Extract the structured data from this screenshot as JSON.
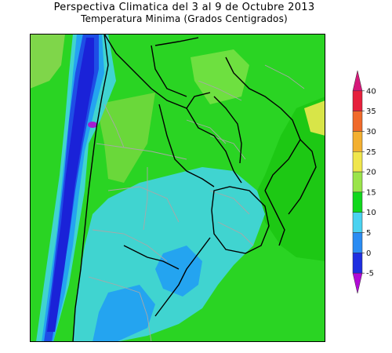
{
  "map": {
    "title_line1": "Perspectiva Climatica del 3 al 9 de Octubre 2013",
    "title_line2": "Temperatura Minima (Grados Centigrados)"
  },
  "colorbar": {
    "levels": [
      "-5",
      "0",
      "5",
      "10",
      "15",
      "20",
      "25",
      "30",
      "35",
      "40"
    ],
    "colors": [
      "#b10ad6",
      "#1e2ee0",
      "#2a8cf3",
      "#4ad2f0",
      "#10d81c",
      "#9ae44a",
      "#f0e64c",
      "#f3b030",
      "#f06a2a",
      "#e6203c",
      "#d6187a"
    ]
  },
  "colors": {
    "background_ocean": "#1dc814",
    "land_green": "#2ad423",
    "warm_yellow": "#d8e548",
    "cyan": "#40d4d0",
    "light_blue": "#24a4f0",
    "blue": "#1e4ee6",
    "deep_blue": "#1a22d8",
    "magenta": "#a21ed0",
    "border_black": "#000000",
    "border_gray": "#a8a8a8"
  }
}
